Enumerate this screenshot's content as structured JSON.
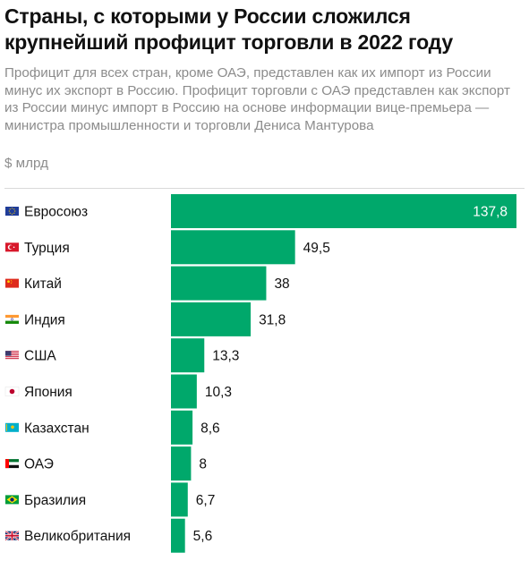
{
  "title": "Страны, с которыми у России сложился крупнейший профицит торговли в 2022 году",
  "subtitle": "Профицит для всех стран, кроме ОАЭ, представлен как их импорт из России минус их экспорт в Россию. Профицит торговли с ОАЭ представлен как экспорт из России минус импорт в Россию на основе информации вице-премьера — министра промышленности и торговли Дениса Мантурова",
  "unit": "$ млрд",
  "colors": {
    "bar": "#00a86b",
    "label": "#111111",
    "label_inside": "#ffffff",
    "muted": "#8c8c8c"
  },
  "chart_data": {
    "type": "bar",
    "orientation": "horizontal",
    "categories": [
      "Евросоюз",
      "Турция",
      "Китай",
      "Индия",
      "США",
      "Япония",
      "Казахстан",
      "ОАЭ",
      "Бразилия",
      "Великобритания"
    ],
    "flags": [
      "eu-flag-icon",
      "turkey-flag-icon",
      "china-flag-icon",
      "india-flag-icon",
      "usa-flag-icon",
      "japan-flag-icon",
      "kazakhstan-flag-icon",
      "uae-flag-icon",
      "brazil-flag-icon",
      "uk-flag-icon"
    ],
    "values": [
      137.8,
      49.5,
      38,
      31.8,
      13.3,
      10.3,
      8.6,
      8,
      6.7,
      5.6
    ],
    "value_labels": [
      "137,8",
      "49,5",
      "38",
      "31,8",
      "13,3",
      "10,3",
      "8,6",
      "8",
      "6,7",
      "5,6"
    ],
    "xlim": [
      0,
      137.8
    ],
    "grid": false,
    "legend": "none"
  }
}
